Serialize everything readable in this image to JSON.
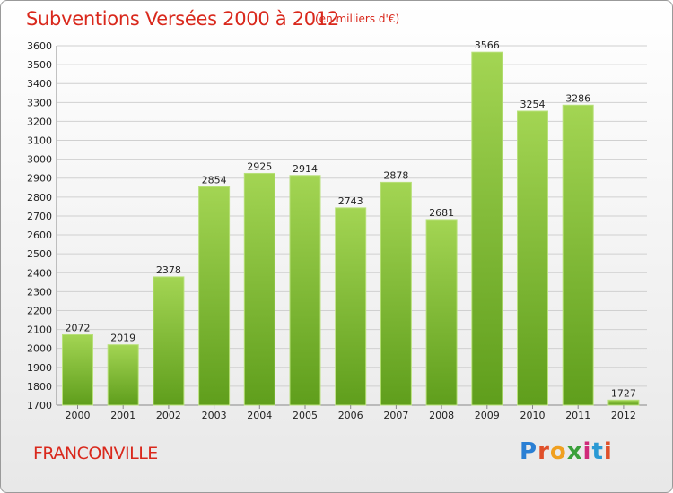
{
  "title": "Subventions Versées 2000 à 2012",
  "subtitle": "(en milliers d'€)",
  "city": "FRANCONVILLE",
  "logo_text": "Proxiti",
  "colors": {
    "title": "#d9281c",
    "bar_light": "#9dd04a",
    "bar_dark": "#5e9d1b",
    "grid": "#cccccc",
    "logo": [
      "#2a7fd4",
      "#e0502a",
      "#f0a020",
      "#3aa03a",
      "#d02a7a",
      "#2a9ad4",
      "#e0502a"
    ]
  },
  "chart_data": {
    "type": "bar",
    "categories": [
      "2000",
      "2001",
      "2002",
      "2003",
      "2004",
      "2005",
      "2006",
      "2007",
      "2008",
      "2009",
      "2010",
      "2011",
      "2012"
    ],
    "values": [
      2072,
      2019,
      2378,
      2854,
      2925,
      2914,
      2743,
      2878,
      2681,
      3566,
      3254,
      3286,
      1727
    ],
    "ylim": [
      1700,
      3600
    ],
    "yticks": [
      1700,
      1800,
      1900,
      2000,
      2100,
      2200,
      2300,
      2400,
      2500,
      2600,
      2700,
      2800,
      2900,
      3000,
      3100,
      3200,
      3300,
      3400,
      3500,
      3600
    ],
    "grid": true,
    "xlabel": "",
    "ylabel": ""
  }
}
